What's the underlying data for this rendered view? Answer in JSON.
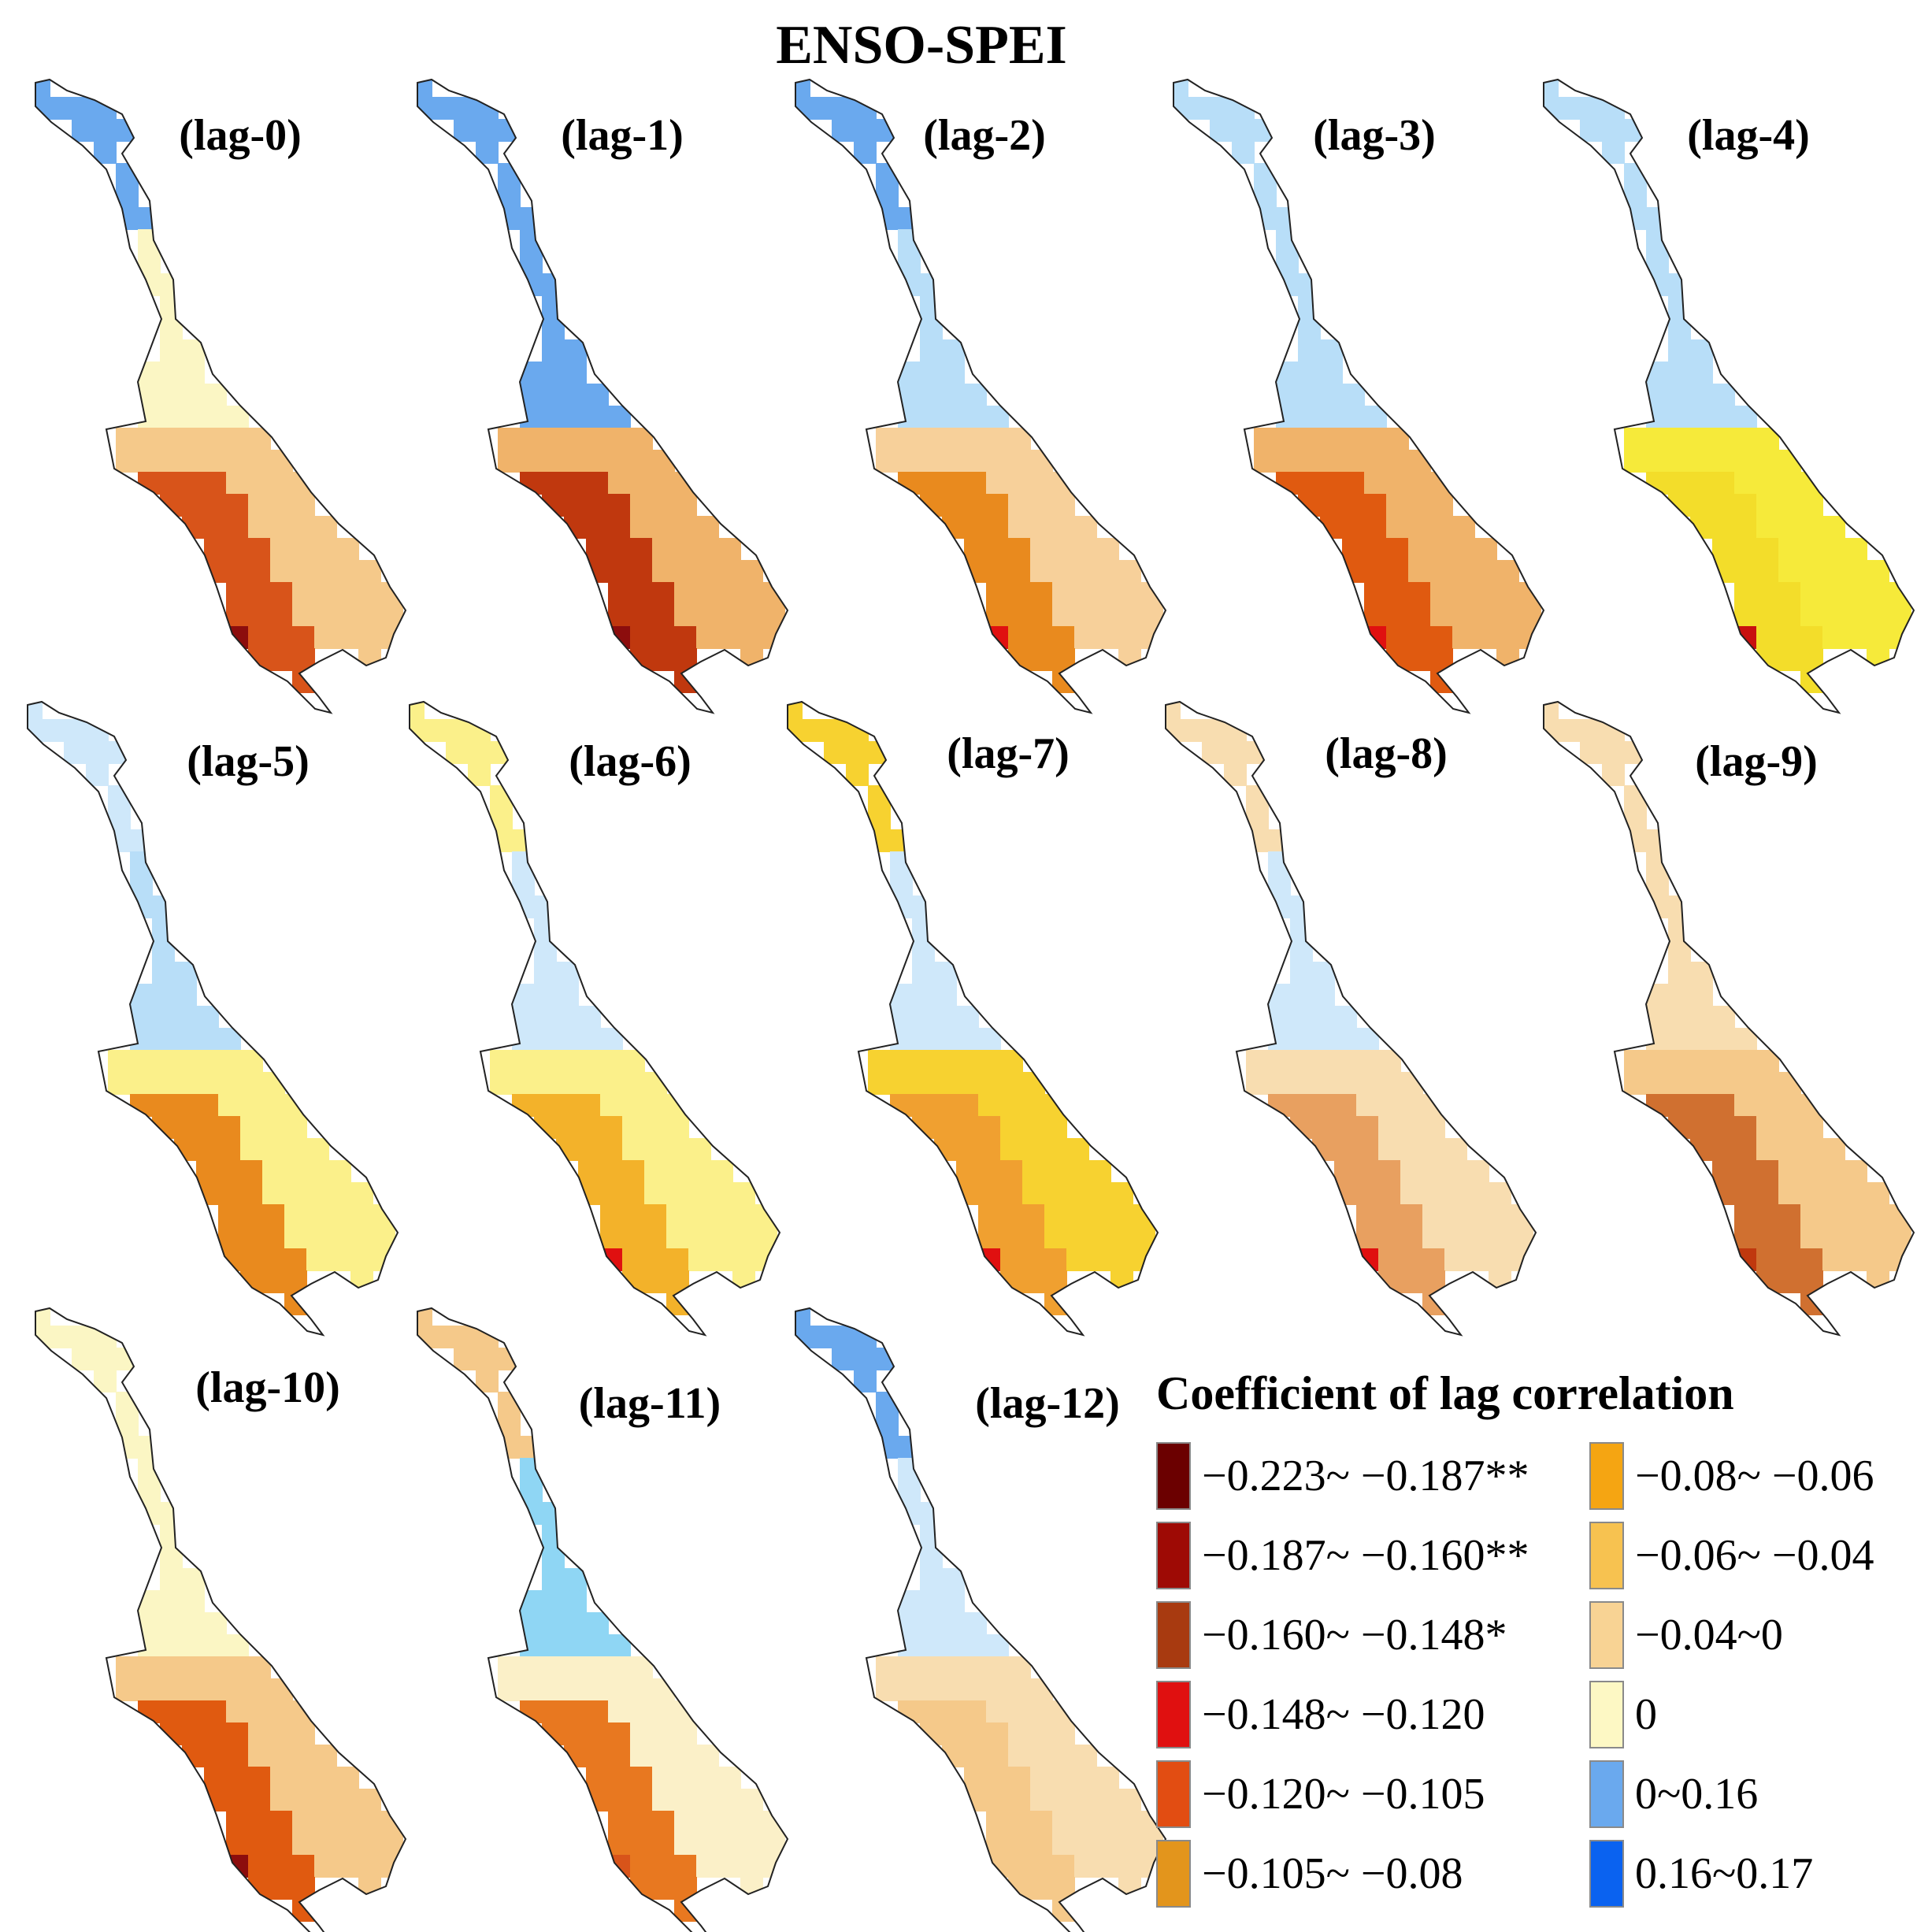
{
  "title": "ENSO-SPEI",
  "panels": [
    {
      "label": "(lag-0)",
      "base": "#f5c98a",
      "north": "#6aa9ee",
      "mid": "#fbf6c4",
      "south": "#d8541a",
      "accent": "#8c0d0d"
    },
    {
      "label": "(lag-1)",
      "base": "#f0b36a",
      "north": "#6aa9ee",
      "mid": "#6aa9ee",
      "south": "#c0380e",
      "accent": "#8c0d0d"
    },
    {
      "label": "(lag-2)",
      "base": "#f7d09a",
      "north": "#6aa9ee",
      "mid": "#b8def8",
      "south": "#e98a1e",
      "accent": "#e01010"
    },
    {
      "label": "(lag-3)",
      "base": "#f0b36a",
      "north": "#b8def8",
      "mid": "#b8def8",
      "south": "#e05a10",
      "accent": "#e01010"
    },
    {
      "label": "(lag-4)",
      "base": "#f6ea3a",
      "north": "#b8def8",
      "mid": "#b8def8",
      "south": "#f3dd2a",
      "accent": "#c8100f"
    },
    {
      "label": "(lag-5)",
      "base": "#fbf08a",
      "north": "#cfe8fa",
      "mid": "#b8def8",
      "south": "#e98a1e",
      "accent": "#e98a1e"
    },
    {
      "label": "(lag-6)",
      "base": "#fbf08a",
      "north": "#fbf08a",
      "mid": "#cfe8fa",
      "south": "#f3b22a",
      "accent": "#e01010"
    },
    {
      "label": "(lag-7)",
      "base": "#f7d230",
      "north": "#f7d230",
      "mid": "#cfe8fa",
      "south": "#f0a030",
      "accent": "#e01010"
    },
    {
      "label": "(lag-8)",
      "base": "#f8ddb0",
      "north": "#f8ddb0",
      "mid": "#cfe8fa",
      "south": "#e8a060",
      "accent": "#e01010"
    },
    {
      "label": "(lag-9)",
      "base": "#f5c98a",
      "north": "#f8ddb0",
      "mid": "#f8ddb0",
      "south": "#d07030",
      "accent": "#c0380e"
    },
    {
      "label": "(lag-10)",
      "base": "#f5c98a",
      "north": "#fbf6c4",
      "mid": "#fbf6c4",
      "south": "#e05a10",
      "accent": "#8c0d0d"
    },
    {
      "label": "(lag-11)",
      "base": "#fbf0c8",
      "north": "#f5c98a",
      "mid": "#8fd6f4",
      "south": "#e87820",
      "accent": "#d8541a"
    },
    {
      "label": "(lag-12)",
      "base": "#f8ddb0",
      "north": "#6aa9ee",
      "mid": "#cfe8fa",
      "south": "#f5c98a",
      "accent": "#f5c98a"
    }
  ],
  "legend": {
    "title": "Coefficient of lag correlation",
    "items": [
      {
        "label": "−0.223~ −0.187**",
        "color": "#6b0000"
      },
      {
        "label": "−0.187~ −0.160**",
        "color": "#9e0a05"
      },
      {
        "label": "−0.160~ −0.148*",
        "color": "#a83a10"
      },
      {
        "label": "−0.148~ −0.120",
        "color": "#e01010"
      },
      {
        "label": "−0.120~ −0.105",
        "color": "#e24d12"
      },
      {
        "label": "−0.105~ −0.08",
        "color": "#e3951c"
      },
      {
        "label": "−0.08~ −0.06",
        "color": "#f5a512"
      },
      {
        "label": "−0.06~ −0.04",
        "color": "#f7c250"
      },
      {
        "label": "−0.04~0",
        "color": "#f8d394"
      },
      {
        "label": "0",
        "color": "#fdf8c4"
      },
      {
        "label": "0~0.16",
        "color": "#6aa9ee"
      },
      {
        "label": "0.16~0.17",
        "color": "#0a62f0"
      }
    ]
  }
}
